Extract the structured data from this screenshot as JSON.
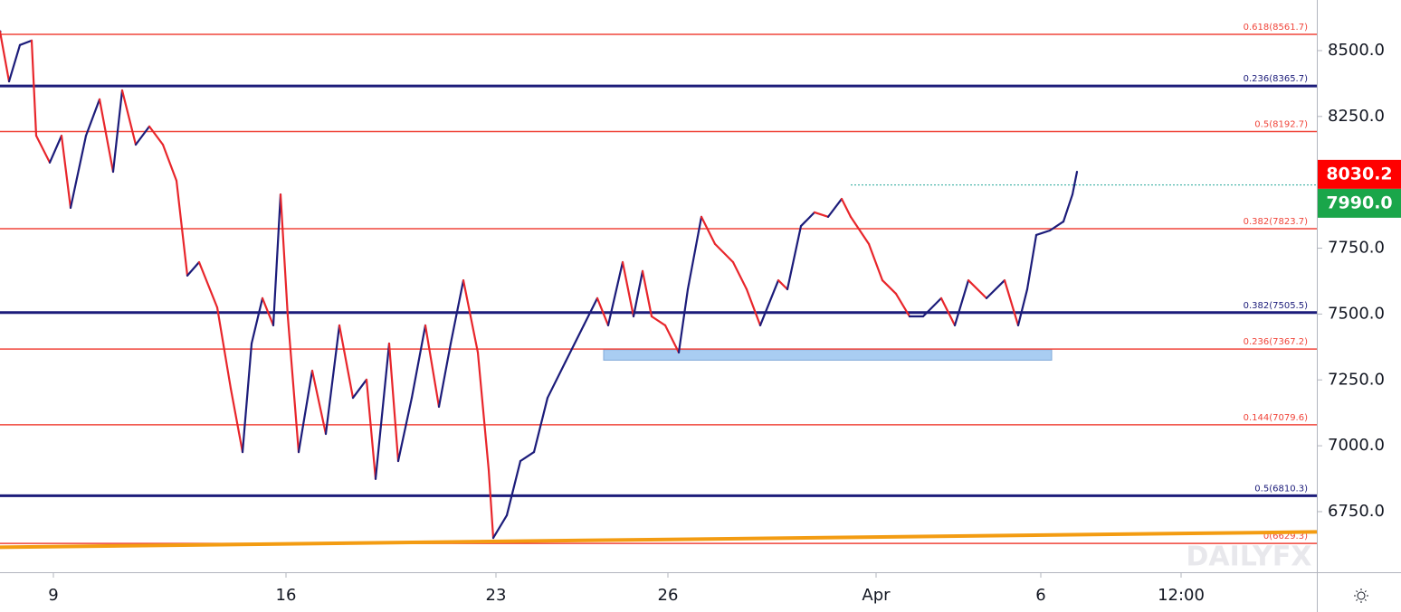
{
  "chart_data": {
    "type": "line",
    "xlim": [
      0,
      291
    ],
    "ylim": [
      6520,
      8692
    ],
    "xticks": [
      {
        "value": 11.8,
        "label": "9"
      },
      {
        "value": 63.2,
        "label": "16"
      },
      {
        "value": 109.6,
        "label": "23"
      },
      {
        "value": 147.6,
        "label": "26"
      },
      {
        "value": 193.6,
        "label": "Apr"
      },
      {
        "value": 230,
        "label": "6"
      },
      {
        "value": 261,
        "label": "12:00"
      }
    ],
    "yticks": [
      {
        "value": 6750,
        "label": "6750.0"
      },
      {
        "value": 7000,
        "label": "7000.0"
      },
      {
        "value": 7250,
        "label": "7250.0"
      },
      {
        "value": 7500,
        "label": "7500.0"
      },
      {
        "value": 7750,
        "label": "7750.0"
      },
      {
        "value": 8000,
        "label": "8000.0"
      },
      {
        "value": 8250,
        "label": "8250.0"
      },
      {
        "value": 8500,
        "label": "8500.0"
      }
    ],
    "price": {
      "up_color": "#1c1c7a",
      "down_color": "#e8262b",
      "x": [
        0,
        2,
        4.4,
        7,
        8,
        11,
        13.6,
        15.6,
        19,
        22,
        25,
        27,
        30,
        33,
        36,
        39,
        41.4,
        44,
        48,
        51,
        53.6,
        55.6,
        58,
        60.4,
        62,
        63.6,
        66,
        69,
        72,
        75,
        78,
        81,
        83,
        86,
        88,
        91,
        94,
        97,
        99.6,
        102.4,
        105.6,
        108,
        109,
        112,
        115,
        118,
        121,
        125,
        129,
        132,
        134.4,
        137.6,
        140,
        142,
        144,
        147,
        150,
        152,
        155,
        158,
        162,
        165,
        168,
        172,
        174,
        177,
        180,
        183,
        186,
        188,
        192,
        195,
        198,
        201,
        204,
        208,
        211,
        214,
        218,
        222,
        225,
        227,
        229,
        232,
        235,
        237,
        238
      ],
      "values": [
        8572,
        8383,
        8521,
        8538,
        8177,
        8075,
        8177,
        7903,
        8177,
        8315,
        8040,
        8349,
        8143,
        8212,
        8143,
        8006,
        7646,
        7697,
        7525,
        7217,
        6976,
        7388,
        7560,
        7457,
        7954,
        7491,
        6976,
        7285,
        7045,
        7457,
        7182,
        7251,
        6874,
        7388,
        6942,
        7182,
        7457,
        7148,
        7388,
        7628,
        7354,
        6908,
        6650,
        6736,
        6942,
        6976,
        7182,
        7320,
        7457,
        7560,
        7457,
        7697,
        7491,
        7663,
        7491,
        7457,
        7354,
        7594,
        7869,
        7766,
        7697,
        7594,
        7457,
        7628,
        7594,
        7834,
        7886,
        7869,
        7937,
        7869,
        7766,
        7628,
        7577,
        7491,
        7491,
        7560,
        7457,
        7628,
        7560,
        7628,
        7457,
        7594,
        7800,
        7817,
        7851,
        7954,
        8040
      ]
    },
    "levels": [
      {
        "label": "0.618(8561.7)",
        "value": 8561.7,
        "color": "#f0453a",
        "width": 1.5
      },
      {
        "label": "0.236(8365.7)",
        "value": 8365.7,
        "color": "#1c1c7a",
        "width": 3
      },
      {
        "label": "0.5(8192.7)",
        "value": 8192.7,
        "color": "#f0453a",
        "width": 1.5
      },
      {
        "label": "0.382(7823.7)",
        "value": 7823.7,
        "color": "#f0453a",
        "width": 1.5
      },
      {
        "label": "0.382(7505.5)",
        "value": 7505.5,
        "color": "#1c1c7a",
        "width": 3
      },
      {
        "label": "0.236(7367.2)",
        "value": 7367.2,
        "color": "#f0453a",
        "width": 1.5
      },
      {
        "label": "0.144(7079.6)",
        "value": 7079.6,
        "color": "#f0453a",
        "width": 1.5
      },
      {
        "label": "0.5(6810.3)",
        "value": 6810.3,
        "color": "#1c1c7a",
        "width": 3
      },
      {
        "label": "0(6629.3)",
        "value": 6629.3,
        "color": "#f0453a",
        "width": 1.5
      }
    ],
    "zone": {
      "x": [
        133.4,
        232.4
      ],
      "y": [
        7325,
        7365
      ],
      "color": "#a9cdf2"
    },
    "trendline": {
      "x": [
        0,
        291
      ],
      "y": [
        6615,
        6673
      ],
      "color": "#f39c12"
    },
    "dotted": {
      "x": [
        188,
        291
      ],
      "y": 7990,
      "color": "#26a69a"
    },
    "price_labels": [
      {
        "value": 8030.2,
        "label": "8030.2",
        "color": "#ff0000"
      },
      {
        "value": 7990,
        "label": "7990.0",
        "color": "#1aa64a"
      }
    ],
    "watermark": "DAILYFX"
  }
}
